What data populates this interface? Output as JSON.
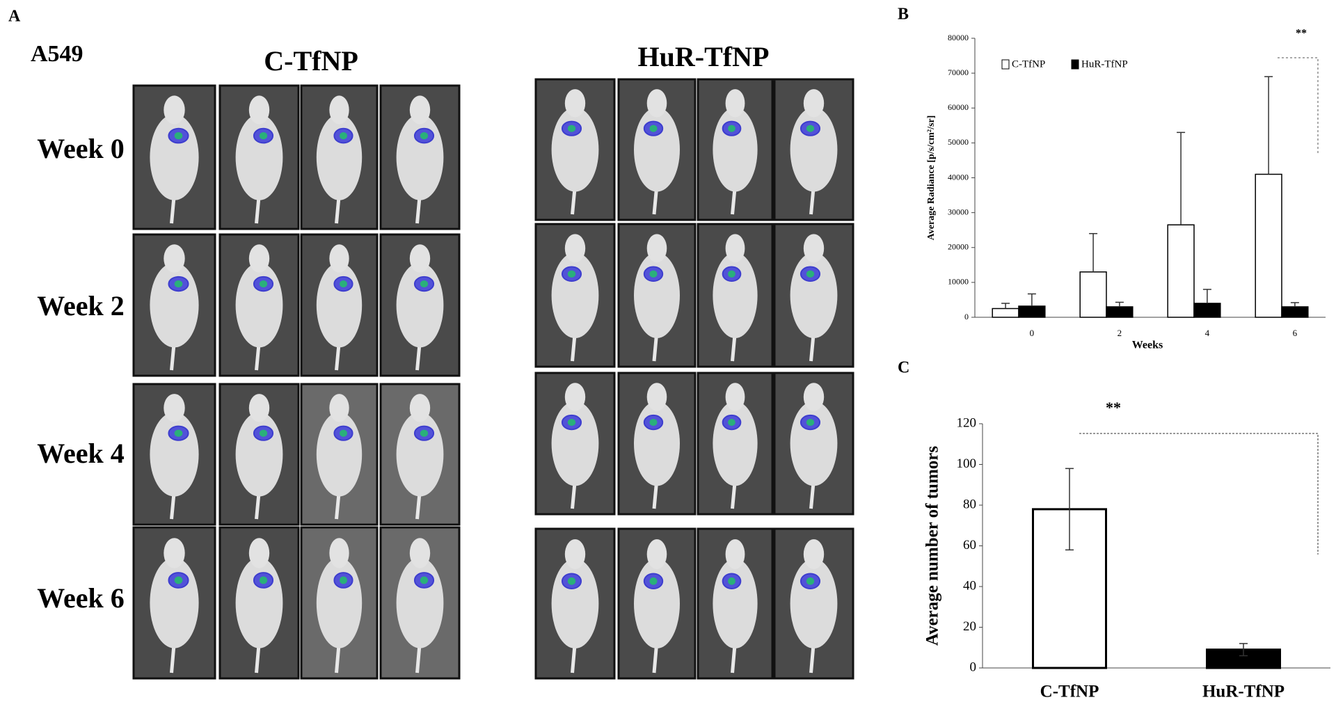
{
  "panel_labels": [
    "A",
    "B",
    "C"
  ],
  "panel_a": {
    "cell_line": "A549",
    "groups": [
      "C-TfNP",
      "HuR-TfNP"
    ],
    "rows": [
      "Week 0",
      "Week 2",
      "Week 4",
      "Week 6"
    ]
  },
  "chart_data": [
    {
      "type": "grouped-bar",
      "y_label": "Average Radiance [p/s/cm²/sr]",
      "x_label": "Weeks",
      "categories": [
        "0",
        "2",
        "4",
        "6"
      ],
      "series": [
        {
          "name": "C-TfNP",
          "color": "#ffffff",
          "values": [
            2500,
            13000,
            26500,
            41000
          ],
          "errors": [
            1500,
            11000,
            26500,
            28000
          ]
        },
        {
          "name": "HuR-TfNP",
          "color": "#000000",
          "values": [
            3200,
            3000,
            4000,
            3000
          ],
          "errors": [
            3500,
            1300,
            4000,
            1200
          ]
        }
      ],
      "ylim": [
        0,
        80000
      ],
      "yticks": [
        0,
        10000,
        20000,
        30000,
        40000,
        50000,
        60000,
        70000,
        80000
      ],
      "annotation": "**",
      "legend": "top-left"
    },
    {
      "type": "bar",
      "y_label": "Average number of tumors",
      "categories": [
        "C-TfNP",
        "HuR-TfNP"
      ],
      "values": [
        78,
        9
      ],
      "errors": [
        20,
        3
      ],
      "colors": [
        "#ffffff",
        "#000000"
      ],
      "ylim": [
        0,
        120
      ],
      "yticks": [
        0,
        20,
        40,
        60,
        80,
        100,
        120
      ],
      "annotation": "**"
    }
  ]
}
